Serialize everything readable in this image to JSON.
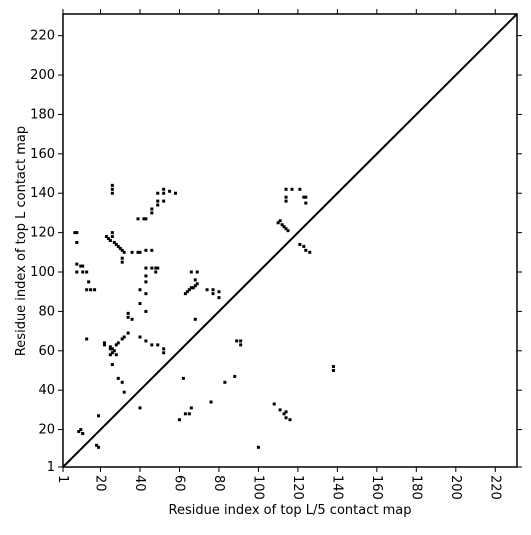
{
  "chart_data": {
    "type": "scatter",
    "xlabel": "Residue index of top L/5 contact map",
    "ylabel": "Residue index of top L contact map",
    "xlim": [
      1,
      231
    ],
    "ylim": [
      1,
      231
    ],
    "xticks": [
      1,
      20,
      40,
      60,
      80,
      100,
      120,
      140,
      160,
      180,
      200,
      220
    ],
    "yticks": [
      1,
      20,
      40,
      60,
      80,
      100,
      120,
      140,
      160,
      180,
      200,
      220
    ],
    "diagonal": true,
    "color": "#000000",
    "x": [
      7,
      8,
      8,
      8,
      10,
      11,
      8,
      11,
      13,
      14,
      13,
      15,
      17,
      13,
      26,
      26,
      26,
      23,
      25,
      26,
      26,
      28,
      29,
      31,
      32,
      31,
      31,
      36,
      39,
      40,
      39,
      42,
      43,
      46,
      46,
      49,
      49,
      52,
      52,
      52,
      55,
      58,
      49,
      43,
      46,
      43,
      43,
      46,
      48,
      49,
      48,
      43,
      40,
      43,
      40,
      43,
      34,
      36,
      34,
      25,
      26,
      28,
      29,
      31,
      32,
      34,
      25,
      28,
      26,
      29,
      31,
      32,
      22,
      22,
      40,
      43,
      46,
      49,
      52,
      52,
      63,
      65,
      66,
      68,
      69,
      66,
      69,
      68,
      74,
      77,
      80,
      80,
      77,
      68,
      62,
      60,
      63,
      65,
      66,
      76,
      83,
      88,
      89,
      91,
      91,
      110,
      112,
      114,
      115,
      114,
      117,
      114,
      114,
      121,
      123,
      124,
      124,
      121,
      123,
      124,
      126,
      138,
      138,
      108,
      111,
      113,
      114,
      116,
      114,
      100,
      19,
      18,
      19,
      9,
      11,
      10,
      40,
      25,
      26,
      27,
      24,
      27,
      30,
      111,
      113,
      64,
      67
    ],
    "values": [
      120,
      120,
      115,
      104,
      103,
      103,
      100,
      100,
      100,
      95,
      91,
      91,
      91,
      66,
      144,
      142,
      140,
      118,
      116,
      118,
      120,
      114,
      113,
      111,
      110,
      107,
      105,
      110,
      110,
      110,
      127,
      127,
      127,
      130,
      132,
      136,
      134,
      136,
      142,
      140,
      141,
      140,
      140,
      111,
      111,
      102,
      98,
      102,
      102,
      102,
      100,
      95,
      91,
      89,
      84,
      80,
      77,
      76,
      79,
      61,
      59,
      63,
      64,
      66,
      67,
      69,
      58,
      58,
      53,
      46,
      44,
      39,
      63,
      64,
      67,
      65,
      63,
      63,
      61,
      59,
      89,
      91,
      92,
      93,
      94,
      100,
      100,
      96,
      91,
      91,
      90,
      87,
      89,
      76,
      46,
      25,
      28,
      28,
      31,
      34,
      44,
      47,
      65,
      65,
      63,
      125,
      124,
      122,
      121,
      142,
      142,
      138,
      136,
      142,
      138,
      138,
      135,
      114,
      113,
      111,
      110,
      52,
      50,
      33,
      30,
      28,
      26,
      25,
      29,
      11,
      27,
      12,
      11,
      19,
      18,
      20,
      31,
      62,
      61,
      60,
      117,
      115,
      112,
      126,
      123,
      90,
      92
    ]
  }
}
